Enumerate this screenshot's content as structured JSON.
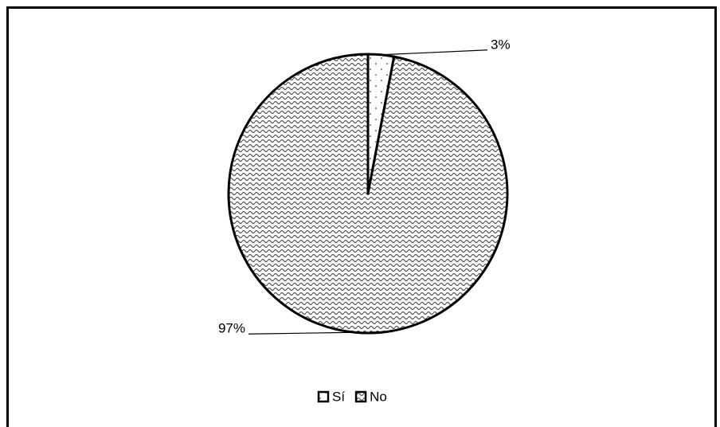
{
  "chart_data": {
    "type": "pie",
    "categories": [
      "Sí",
      "No"
    ],
    "values": [
      3,
      97
    ],
    "value_labels": [
      "3%",
      "97%"
    ],
    "patterns": [
      "dots",
      "waves"
    ],
    "legend": "bottom"
  }
}
